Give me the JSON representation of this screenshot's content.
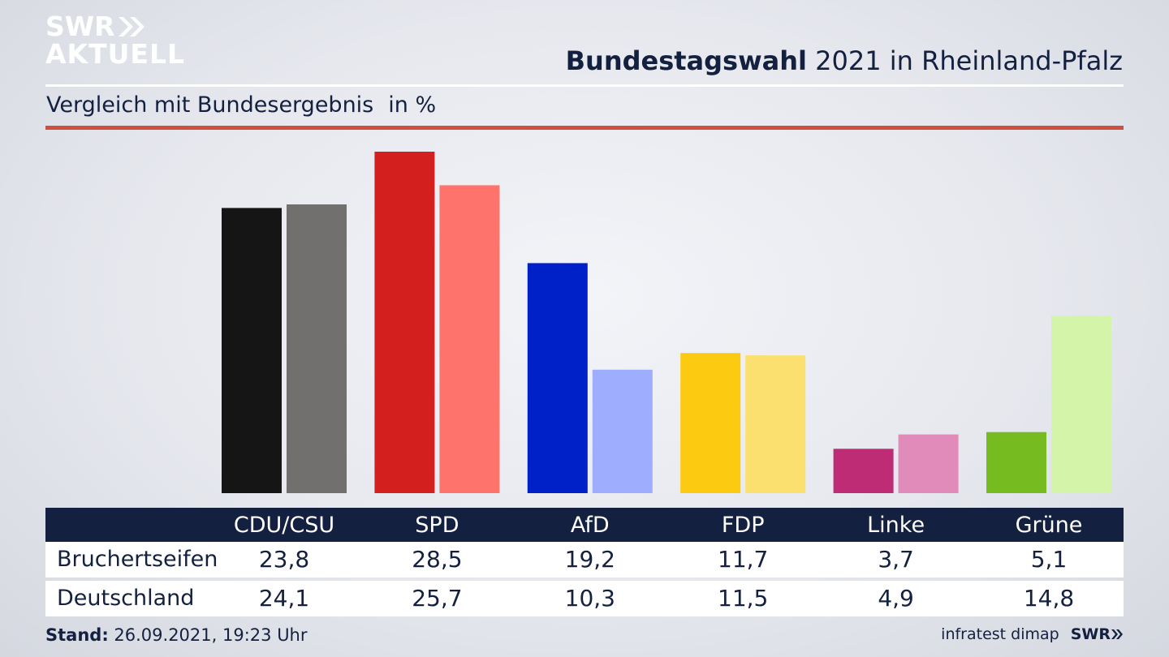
{
  "logo": {
    "line1": "SWR",
    "line2": "AKTUELL"
  },
  "header": {
    "title_bold": "Bundestagswahl",
    "title_rest": "2021 in Rheinland-Pfalz",
    "subtitle": "Vergleich mit Bundesergebnis",
    "unit": "in %"
  },
  "footer": {
    "stand_label": "Stand:",
    "stand_value": "26.09.2021, 19:23 Uhr",
    "source": "infratest dimap",
    "source_logo": "SWR"
  },
  "table": {
    "headers": [
      "CDU/CSU",
      "SPD",
      "AfD",
      "FDP",
      "Linke",
      "Grüne"
    ],
    "rows": [
      {
        "label": "Bruchertseifen",
        "values": [
          "23,8",
          "28,5",
          "19,2",
          "11,7",
          "3,7",
          "5,1"
        ]
      },
      {
        "label": "Deutschland",
        "values": [
          "24,1",
          "25,7",
          "10,3",
          "11,5",
          "4,9",
          "14,8"
        ]
      }
    ]
  },
  "colors": {
    "navy": "#13203f",
    "accent_red": "#d0503f",
    "local": [
      "#151515",
      "#d41f1f",
      "#0020c8",
      "#fcca10",
      "#bd2c74",
      "#76bc21"
    ],
    "national": [
      "#72706e",
      "#fe736c",
      "#9ead fd",
      "#fbe070",
      "#e08bb9",
      "#d3f4a9"
    ]
  },
  "chart_data": {
    "type": "bar",
    "categories": [
      "CDU/CSU",
      "SPD",
      "AfD",
      "FDP",
      "Linke",
      "Grüne"
    ],
    "series": [
      {
        "name": "Bruchertseifen",
        "values": [
          23.8,
          28.5,
          19.2,
          11.7,
          3.7,
          5.1
        ]
      },
      {
        "name": "Deutschland",
        "values": [
          24.1,
          25.7,
          10.3,
          11.5,
          4.9,
          14.8
        ]
      }
    ],
    "title": "Bundestagswahl 2021 in Rheinland-Pfalz",
    "subtitle": "Vergleich mit Bundesergebnis",
    "ylabel": "in %",
    "ylim": [
      0,
      28.5
    ],
    "grid": false,
    "legend": "none"
  }
}
